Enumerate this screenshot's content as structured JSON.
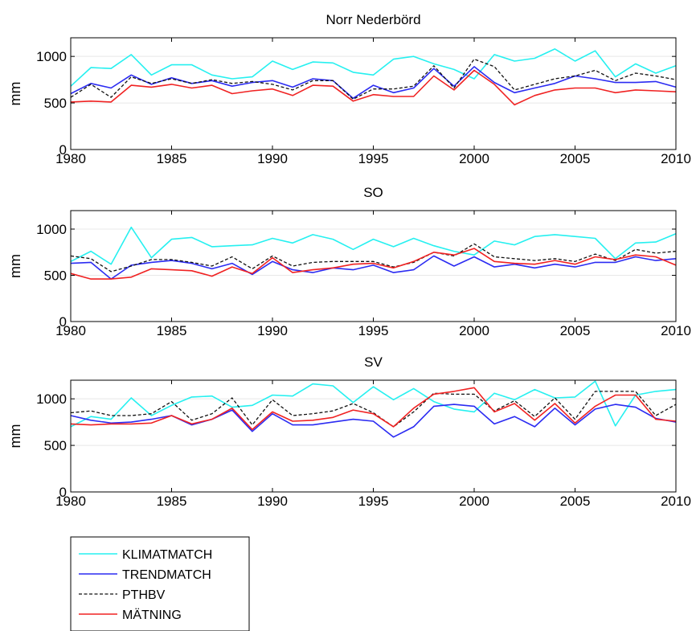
{
  "chart_data": [
    {
      "type": "line",
      "title": "Norr Nederbörd",
      "xlabel": "",
      "ylabel": "mm",
      "xlim": [
        1980,
        2010
      ],
      "ylim": [
        0,
        1200
      ],
      "x_ticks": [
        1980,
        1985,
        1990,
        1995,
        2000,
        2005,
        2010
      ],
      "y_ticks": [
        0,
        500,
        1000
      ],
      "x": [
        1980,
        1981,
        1982,
        1983,
        1984,
        1985,
        1986,
        1987,
        1988,
        1989,
        1990,
        1991,
        1992,
        1993,
        1994,
        1995,
        1996,
        1997,
        1998,
        1999,
        2000,
        2001,
        2002,
        2003,
        2004,
        2005,
        2006,
        2007,
        2008,
        2009,
        2010
      ],
      "series": [
        {
          "name": "KLIMATMATCH",
          "values": [
            680,
            880,
            870,
            1020,
            800,
            910,
            910,
            800,
            760,
            780,
            950,
            860,
            940,
            930,
            830,
            800,
            970,
            1000,
            920,
            860,
            760,
            1020,
            950,
            980,
            1080,
            950,
            1060,
            780,
            920,
            820,
            900
          ]
        },
        {
          "name": "TRENDMATCH",
          "values": [
            600,
            710,
            660,
            800,
            700,
            770,
            710,
            740,
            680,
            720,
            740,
            670,
            760,
            740,
            550,
            690,
            610,
            660,
            870,
            680,
            890,
            720,
            610,
            660,
            710,
            790,
            760,
            720,
            720,
            730,
            670
          ]
        },
        {
          "name": "PTHBV",
          "values": [
            560,
            700,
            560,
            780,
            710,
            760,
            710,
            750,
            710,
            730,
            700,
            640,
            740,
            740,
            540,
            650,
            650,
            680,
            900,
            660,
            970,
            890,
            640,
            700,
            760,
            790,
            850,
            740,
            820,
            790,
            750
          ]
        },
        {
          "name": "MÄTNING",
          "values": [
            510,
            520,
            510,
            690,
            670,
            700,
            660,
            690,
            600,
            630,
            650,
            580,
            690,
            680,
            520,
            590,
            570,
            570,
            790,
            640,
            850,
            700,
            480,
            580,
            640,
            660,
            660,
            610,
            640,
            630,
            620
          ]
        }
      ]
    },
    {
      "type": "line",
      "title": "SO",
      "xlabel": "",
      "ylabel": "mm",
      "xlim": [
        1980,
        2010
      ],
      "ylim": [
        0,
        1200
      ],
      "x_ticks": [
        1980,
        1985,
        1990,
        1995,
        2000,
        2005,
        2010
      ],
      "y_ticks": [
        0,
        500,
        1000
      ],
      "x": [
        1980,
        1981,
        1982,
        1983,
        1984,
        1985,
        1986,
        1987,
        1988,
        1989,
        1990,
        1991,
        1992,
        1993,
        1994,
        1995,
        1996,
        1997,
        1998,
        1999,
        2000,
        2001,
        2002,
        2003,
        2004,
        2005,
        2006,
        2007,
        2008,
        2009,
        2010
      ],
      "series": [
        {
          "name": "KLIMATMATCH",
          "values": [
            650,
            760,
            620,
            1020,
            690,
            890,
            910,
            810,
            820,
            830,
            900,
            850,
            940,
            890,
            780,
            890,
            810,
            900,
            820,
            760,
            720,
            870,
            830,
            920,
            940,
            920,
            900,
            680,
            850,
            860,
            950
          ]
        },
        {
          "name": "TRENDMATCH",
          "values": [
            630,
            640,
            460,
            610,
            640,
            660,
            630,
            570,
            630,
            510,
            650,
            560,
            530,
            580,
            560,
            610,
            530,
            560,
            710,
            600,
            700,
            590,
            620,
            580,
            620,
            590,
            640,
            640,
            700,
            660,
            680
          ]
        },
        {
          "name": "PTHBV",
          "values": [
            710,
            680,
            540,
            600,
            670,
            670,
            640,
            600,
            700,
            570,
            710,
            600,
            640,
            650,
            650,
            650,
            590,
            640,
            750,
            710,
            840,
            700,
            680,
            660,
            680,
            650,
            730,
            660,
            780,
            740,
            760
          ]
        },
        {
          "name": "MÄTNING",
          "values": [
            520,
            460,
            460,
            480,
            570,
            560,
            550,
            490,
            590,
            520,
            690,
            530,
            560,
            580,
            620,
            630,
            580,
            650,
            750,
            720,
            790,
            650,
            630,
            620,
            660,
            620,
            700,
            670,
            720,
            700,
            610
          ]
        }
      ]
    },
    {
      "type": "line",
      "title": "SV",
      "xlabel": "",
      "ylabel": "mm",
      "xlim": [
        1980,
        2010
      ],
      "ylim": [
        0,
        1200
      ],
      "x_ticks": [
        1980,
        1985,
        1990,
        1995,
        2000,
        2005,
        2010
      ],
      "y_ticks": [
        0,
        500,
        1000
      ],
      "x": [
        1980,
        1981,
        1982,
        1983,
        1984,
        1985,
        1986,
        1987,
        1988,
        1989,
        1990,
        1991,
        1992,
        1993,
        1994,
        1995,
        1996,
        1997,
        1998,
        1999,
        2000,
        2001,
        2002,
        2003,
        2004,
        2005,
        2006,
        2007,
        2008,
        2009,
        2010
      ],
      "series": [
        {
          "name": "KLIMATMATCH",
          "values": [
            700,
            810,
            780,
            1010,
            820,
            930,
            1020,
            1030,
            910,
            930,
            1040,
            1030,
            1160,
            1140,
            960,
            1130,
            990,
            1110,
            970,
            890,
            860,
            1060,
            990,
            1100,
            1010,
            1020,
            1190,
            710,
            1040,
            1080,
            1100
          ]
        },
        {
          "name": "TRENDMATCH",
          "values": [
            820,
            770,
            740,
            750,
            780,
            820,
            720,
            780,
            880,
            650,
            840,
            720,
            720,
            750,
            780,
            760,
            590,
            700,
            920,
            940,
            920,
            730,
            810,
            700,
            900,
            720,
            890,
            940,
            910,
            790,
            750
          ]
        },
        {
          "name": "PTHBV",
          "values": [
            850,
            870,
            820,
            820,
            840,
            970,
            770,
            840,
            1010,
            720,
            990,
            820,
            840,
            870,
            950,
            850,
            700,
            860,
            1060,
            1050,
            1050,
            870,
            980,
            810,
            1010,
            780,
            1080,
            1080,
            1080,
            820,
            940
          ]
        },
        {
          "name": "MÄTNING",
          "values": [
            730,
            720,
            730,
            730,
            740,
            820,
            730,
            780,
            900,
            670,
            860,
            760,
            770,
            800,
            880,
            840,
            700,
            900,
            1050,
            1080,
            1120,
            860,
            950,
            770,
            950,
            740,
            920,
            1040,
            1040,
            780,
            760
          ]
        }
      ]
    }
  ],
  "legend": {
    "placement": "bottom-left",
    "entries": [
      "KLIMATMATCH",
      "TRENDMATCH",
      "PTHBV",
      "MÄTNING"
    ]
  },
  "colors": {
    "KLIMATMATCH": "#26f0f0",
    "TRENDMATCH": "#2b2bf2",
    "PTHBV": "#111111",
    "MÄTNING": "#f02222",
    "grid": "#e8e8e8",
    "axis": "#000000"
  }
}
